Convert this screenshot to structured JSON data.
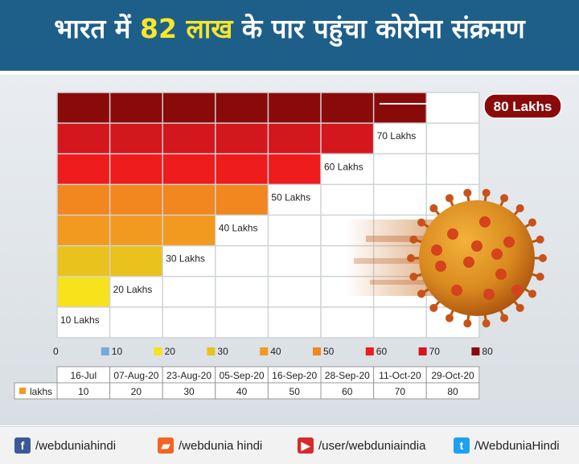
{
  "header": {
    "title_part1": "भारत में",
    "title_number": "82",
    "title_word": "लाख",
    "title_part2": "के पार पहुंचा कोरोना संक्रमण"
  },
  "chart_data": {
    "type": "bar",
    "title": "भारत में 82 लाख के पार पहुंचा कोरोना संक्रमण",
    "categories": [
      "16-Jul",
      "07-Aug-20",
      "23-Aug-20",
      "05-Sep-20",
      "16-Sep-20",
      "28-Sep-20",
      "11-Oct-20",
      "29-Oct-20"
    ],
    "series": [
      {
        "name": "lakhs",
        "values": [
          10,
          20,
          30,
          40,
          50,
          60,
          70,
          80
        ]
      }
    ],
    "value_labels": [
      "10 Lakhs",
      "20 Lakhs",
      "30 Lakhs",
      "40 Lakhs",
      "50 Lakhs",
      "60 Lakhs",
      "70 Lakhs",
      "80 Lakhs"
    ],
    "ylim": [
      0,
      80
    ],
    "grid": true,
    "legend_items": [
      {
        "label": "0",
        "color": ""
      },
      {
        "label": "10",
        "color": "#7aa7d8"
      },
      {
        "label": "20",
        "color": "#f7e21c"
      },
      {
        "label": "30",
        "color": "#e9c21e"
      },
      {
        "label": "40",
        "color": "#f19a1f"
      },
      {
        "label": "50",
        "color": "#f2861f"
      },
      {
        "label": "60",
        "color": "#ee1c1c"
      },
      {
        "label": "70",
        "color": "#d4161d"
      },
      {
        "label": "80",
        "color": "#8a0a0a"
      }
    ],
    "level_colors": [
      "#7aa7d8",
      "#f7e21c",
      "#e9c21e",
      "#f19a1f",
      "#f2861f",
      "#ee1c1c",
      "#d4161d",
      "#8a0a0a"
    ],
    "highlight_label": "80 Lakhs"
  },
  "footer": {
    "items": [
      {
        "label": "/webduniahindi",
        "icon": "facebook-icon",
        "color": "#3b5998"
      },
      {
        "label": "/webdunia hindi",
        "icon": "message-icon",
        "color": "#f26522"
      },
      {
        "label": "/user/webduniaindia",
        "icon": "youtube-icon",
        "color": "#d62b2b"
      },
      {
        "label": "/WebduniaHindi",
        "icon": "twitter-icon",
        "color": "#1da1f2"
      }
    ]
  }
}
